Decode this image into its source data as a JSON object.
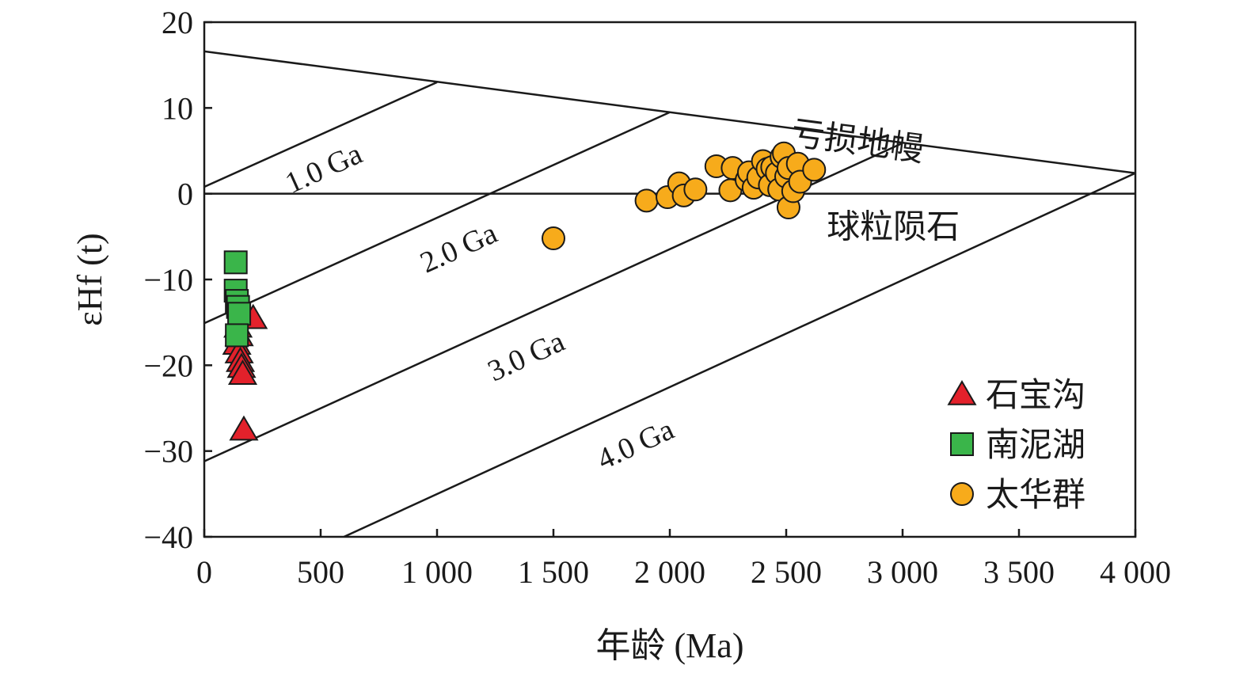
{
  "chart_data": {
    "type": "scatter",
    "xlabel": "年龄 (Ma)",
    "ylabel": "εHf (t)",
    "xlim": [
      0,
      4000
    ],
    "ylim": [
      -40,
      20
    ],
    "x_ticks": [
      0,
      500,
      1000,
      1500,
      2000,
      2500,
      3000,
      3500,
      4000
    ],
    "x_tick_labels": [
      "0",
      "500",
      "1 000",
      "1 500",
      "2 000",
      "2 500",
      "3 000",
      "3 500",
      "4 000"
    ],
    "y_ticks": [
      20,
      10,
      0,
      -10,
      -20,
      -30,
      -40
    ],
    "y_tick_labels": [
      "20",
      "10",
      "0",
      "−10",
      "−20",
      "−30",
      "−40"
    ],
    "grid": false,
    "legend_position": "bottom-right",
    "reference_lines": [
      {
        "label": "亏损地幔",
        "x": [
          0,
          4000
        ],
        "y": [
          16.6,
          2.4
        ]
      },
      {
        "label": "球粒陨石",
        "x": [
          0,
          4000
        ],
        "y": [
          0,
          0
        ]
      }
    ],
    "model_age_lines": [
      {
        "label": "1.0 Ga",
        "x": [
          0,
          1000
        ],
        "y": [
          0.8,
          13.0
        ]
      },
      {
        "label": "2.0 Ga",
        "x": [
          0,
          2000
        ],
        "y": [
          -15.1,
          9.5
        ]
      },
      {
        "label": "3.0 Ga",
        "x": [
          0,
          3000
        ],
        "y": [
          -31.2,
          5.9
        ]
      },
      {
        "label": "4.0 Ga",
        "x": [
          600,
          4000
        ],
        "y": [
          -40,
          2.4
        ]
      }
    ],
    "series": [
      {
        "name": "石宝沟",
        "marker": "triangle",
        "color": "#e3212b",
        "points": [
          [
            210,
            -14.5
          ],
          [
            140,
            -17.5
          ],
          [
            150,
            -18.5
          ],
          [
            155,
            -19.5
          ],
          [
            160,
            -20.2
          ],
          [
            165,
            -21.0
          ],
          [
            145,
            -15.5
          ],
          [
            150,
            -16.5
          ],
          [
            170,
            -27.5
          ]
        ]
      },
      {
        "name": "南泥湖",
        "marker": "square",
        "color": "#3ab54a",
        "points": [
          [
            135,
            -8.0
          ],
          [
            135,
            -11.3
          ],
          [
            140,
            -12.5
          ],
          [
            145,
            -13.2
          ],
          [
            150,
            -14.0
          ],
          [
            140,
            -16.5
          ]
        ]
      },
      {
        "name": "太华群",
        "marker": "circle",
        "color": "#f7ab1b",
        "points": [
          [
            1500,
            -5.2
          ],
          [
            1900,
            -0.8
          ],
          [
            1990,
            -0.4
          ],
          [
            2040,
            1.2
          ],
          [
            2060,
            -0.2
          ],
          [
            2110,
            0.5
          ],
          [
            2200,
            3.2
          ],
          [
            2260,
            0.4
          ],
          [
            2270,
            3.0
          ],
          [
            2330,
            1.6
          ],
          [
            2340,
            2.5
          ],
          [
            2360,
            0.7
          ],
          [
            2380,
            1.9
          ],
          [
            2400,
            3.8
          ],
          [
            2420,
            2.9
          ],
          [
            2430,
            1.0
          ],
          [
            2440,
            3.1
          ],
          [
            2460,
            2.4
          ],
          [
            2470,
            0.5
          ],
          [
            2480,
            4.3
          ],
          [
            2490,
            4.7
          ],
          [
            2500,
            2.0
          ],
          [
            2510,
            3.0
          ],
          [
            2510,
            -1.6
          ],
          [
            2530,
            0.3
          ],
          [
            2550,
            3.5
          ],
          [
            2560,
            1.4
          ],
          [
            2620,
            2.8
          ]
        ]
      }
    ]
  }
}
